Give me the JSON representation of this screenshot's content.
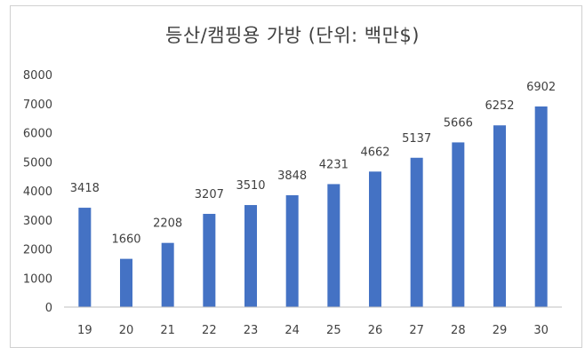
{
  "chart_data": {
    "type": "bar",
    "title": "등산/캠핑용 가방 (단위: 백만$)",
    "categories": [
      "19",
      "20",
      "21",
      "22",
      "23",
      "24",
      "25",
      "26",
      "27",
      "28",
      "29",
      "30"
    ],
    "values": [
      3418,
      1660,
      2208,
      3207,
      3510,
      3848,
      4231,
      4662,
      5137,
      5666,
      6252,
      6902
    ],
    "ylim": [
      0,
      8000
    ],
    "yticks": [
      "0",
      "1000",
      "2000",
      "3000",
      "4000",
      "5000",
      "6000",
      "7000",
      "8000"
    ],
    "grid": false,
    "legend": "none",
    "colors": {
      "bar": "#4472C4",
      "axis": "#bfbfbf",
      "text": "#404040"
    }
  }
}
